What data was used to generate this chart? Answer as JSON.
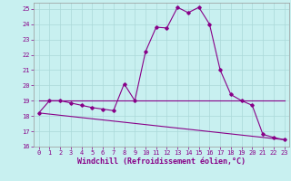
{
  "title": "",
  "xlabel": "Windchill (Refroidissement éolien,°C)",
  "ylabel": "",
  "bg_color": "#c8f0f0",
  "grid_color": "#aad8d8",
  "line_color": "#880088",
  "xlim": [
    -0.5,
    23.5
  ],
  "ylim": [
    16,
    25.4
  ],
  "yticks": [
    16,
    17,
    18,
    19,
    20,
    21,
    22,
    23,
    24,
    25
  ],
  "xticks": [
    0,
    1,
    2,
    3,
    4,
    5,
    6,
    7,
    8,
    9,
    10,
    11,
    12,
    13,
    14,
    15,
    16,
    17,
    18,
    19,
    20,
    21,
    22,
    23
  ],
  "line1_x": [
    0,
    1,
    2,
    3,
    4,
    5,
    6,
    7,
    8,
    9,
    10,
    11,
    12,
    13,
    14,
    15,
    16,
    17,
    18,
    19,
    20,
    21,
    22,
    23
  ],
  "line1_y": [
    18.2,
    19.0,
    19.0,
    18.85,
    18.7,
    18.55,
    18.45,
    18.35,
    20.1,
    19.0,
    22.2,
    23.8,
    23.75,
    25.1,
    24.75,
    25.1,
    24.0,
    21.0,
    19.4,
    19.0,
    18.7,
    16.8,
    16.6,
    16.45
  ],
  "line2_x": [
    0,
    23
  ],
  "line2_y": [
    19.0,
    19.0
  ],
  "line3_x": [
    0,
    23
  ],
  "line3_y": [
    18.2,
    16.45
  ],
  "marker": "D",
  "markersize": 1.8,
  "linewidth": 0.8,
  "tick_fontsize": 5.0,
  "xlabel_fontsize": 6.0
}
